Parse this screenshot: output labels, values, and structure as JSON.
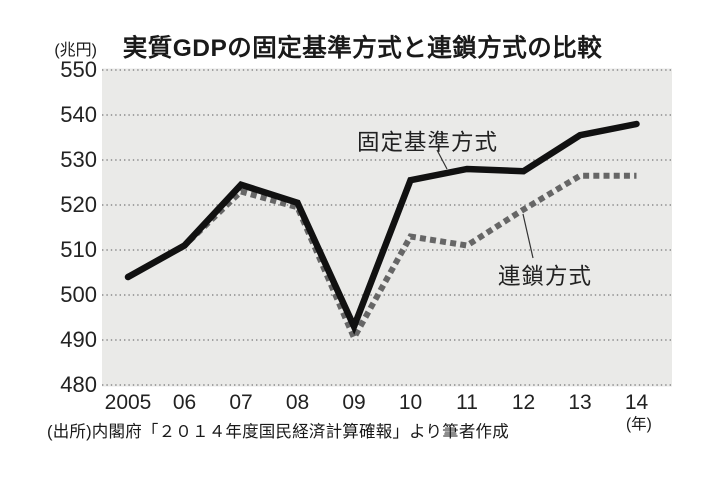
{
  "header": {
    "title": "実質GDPの固定基準方式と連鎖方式の比較"
  },
  "chart_data": {
    "type": "line",
    "title": "実質GDPの固定基準方式と連鎖方式の比較",
    "y_unit": "(兆円)",
    "x_unit": "(年)",
    "categories": [
      "2005",
      "06",
      "07",
      "08",
      "09",
      "10",
      "11",
      "12",
      "13",
      "14"
    ],
    "series": [
      {
        "name": "固定基準方式",
        "style": "solid",
        "color": "#111111",
        "values": [
          504,
          511,
          524.5,
          520.5,
          493,
          525.5,
          528,
          527.5,
          535.5,
          538
        ]
      },
      {
        "name": "連鎖方式",
        "style": "dashed",
        "color": "#666666",
        "values": [
          504,
          511,
          523,
          519.5,
          490.5,
          513,
          511,
          519,
          526.5,
          526.5
        ]
      }
    ],
    "ylim": [
      480,
      550
    ],
    "ytick_step": 10,
    "grid": "horizontal-dotted",
    "plot_bg": "#eaeae8",
    "legend_position": "inline-annotations"
  },
  "footer": {
    "source": "(出所)内閣府「２０１４年度国民経済計算確報」より筆者作成"
  }
}
